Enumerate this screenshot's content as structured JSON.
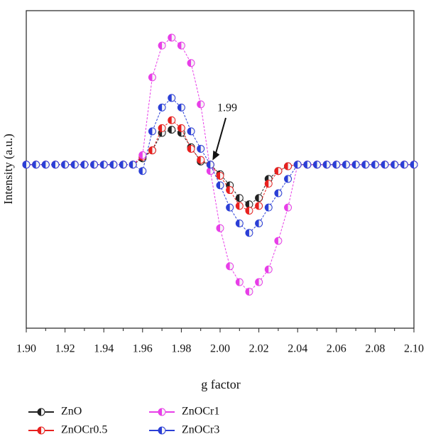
{
  "chart_data": {
    "type": "line",
    "xlabel": "g factor",
    "ylabel": "Intensity (a.u.)",
    "annotation": {
      "text": "1.99",
      "x": 1.995,
      "y": 0
    },
    "x": [
      1.9,
      1.905,
      1.91,
      1.915,
      1.92,
      1.925,
      1.93,
      1.935,
      1.94,
      1.945,
      1.95,
      1.955,
      1.96,
      1.965,
      1.97,
      1.975,
      1.98,
      1.985,
      1.99,
      1.995,
      2.0,
      2.005,
      2.01,
      2.015,
      2.02,
      2.025,
      2.03,
      2.035,
      2.04,
      2.045,
      2.05,
      2.055,
      2.06,
      2.065,
      2.07,
      2.075,
      2.08,
      2.085,
      2.09,
      2.095,
      2.1
    ],
    "series": [
      {
        "name": "ZnO",
        "color": "#222222",
        "values": [
          0,
          0,
          0,
          0,
          0,
          0,
          0,
          0,
          0,
          0,
          0,
          0,
          0.04,
          0.09,
          0.2,
          0.22,
          0.2,
          0.11,
          0.02,
          0,
          -0.06,
          -0.13,
          -0.21,
          -0.25,
          -0.21,
          -0.09,
          -0.04,
          -0.01,
          0,
          0,
          0,
          0,
          0,
          0,
          0,
          0,
          0,
          0,
          0,
          0,
          0
        ]
      },
      {
        "name": "ZnOCr0.5",
        "color": "#e8211f",
        "values": [
          0,
          0,
          0,
          0,
          0,
          0,
          0,
          0,
          0,
          0,
          0,
          0,
          0.05,
          0.09,
          0.23,
          0.28,
          0.23,
          0.1,
          0.03,
          0,
          -0.07,
          -0.16,
          -0.26,
          -0.29,
          -0.26,
          -0.12,
          -0.04,
          -0.01,
          0,
          0,
          0,
          0,
          0,
          0,
          0,
          0,
          0,
          0,
          0,
          0,
          0
        ]
      },
      {
        "name": "ZnOCr1",
        "color": "#e83ee8",
        "values": [
          0,
          0,
          0,
          0,
          0,
          0,
          0,
          0,
          0,
          0,
          0,
          0,
          0.06,
          0.55,
          0.75,
          0.8,
          0.75,
          0.64,
          0.38,
          -0.04,
          -0.4,
          -0.64,
          -0.74,
          -0.8,
          -0.74,
          -0.66,
          -0.48,
          -0.27,
          0,
          0,
          0,
          0,
          0,
          0,
          0,
          0,
          0,
          0,
          0,
          0,
          0
        ]
      },
      {
        "name": "ZnOCr3",
        "color": "#2b3fd6",
        "values": [
          0,
          0,
          0,
          0,
          0,
          0,
          0,
          0,
          0,
          0,
          0,
          0,
          -0.04,
          0.21,
          0.36,
          0.42,
          0.36,
          0.21,
          0.1,
          0,
          -0.13,
          -0.27,
          -0.37,
          -0.43,
          -0.37,
          -0.27,
          -0.18,
          -0.09,
          0,
          0,
          0,
          0,
          0,
          0,
          0,
          0,
          0,
          0,
          0,
          0,
          0
        ]
      }
    ],
    "xlim": [
      1.9,
      2.1
    ],
    "xticks": [
      {
        "value": 1.9,
        "label": "1.90"
      },
      1.92,
      1.94,
      1.96,
      1.98,
      {
        "value": 2.0,
        "label": "2.00"
      },
      2.02,
      2.04,
      2.06,
      2.08,
      {
        "value": 2.1,
        "label": "2.10"
      }
    ],
    "xminorticks": [
      1.91,
      1.93,
      1.95,
      1.97,
      1.99,
      2.01,
      2.03,
      2.05,
      2.07,
      2.09
    ],
    "ylim": [
      -1.03,
      0.97
    ],
    "grid": false,
    "legend": "bottom"
  }
}
